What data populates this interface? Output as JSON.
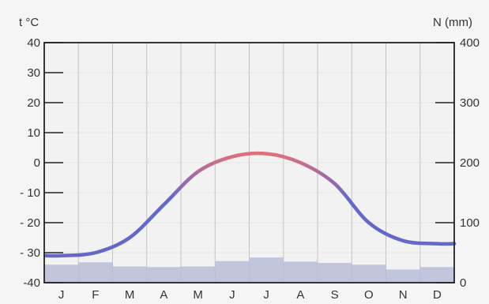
{
  "chart_data": {
    "type": "climate-diagram",
    "months": [
      "J",
      "F",
      "M",
      "A",
      "M",
      "J",
      "J",
      "A",
      "S",
      "O",
      "N",
      "D"
    ],
    "temperature": {
      "axis_label": "t °C",
      "ylim": [
        -40,
        40
      ],
      "ticks": [
        40,
        30,
        20,
        10,
        0,
        -10,
        -20,
        -30,
        -40
      ],
      "tick_labels": [
        "40",
        "30",
        "20",
        "10",
        "0",
        "- 10",
        "- 20",
        "- 30",
        "-40"
      ],
      "values": [
        -31,
        -30,
        -25,
        -14,
        -3,
        2,
        3,
        0,
        -7,
        -20,
        -26,
        -27
      ]
    },
    "precipitation": {
      "axis_label": "N (mm)",
      "ylim": [
        0,
        400
      ],
      "ticks": [
        400,
        300,
        200,
        100,
        0
      ],
      "tick_labels": [
        "400",
        "300",
        "200",
        "100",
        "0"
      ],
      "values": [
        30,
        34,
        27,
        26,
        27,
        36,
        42,
        35,
        33,
        30,
        22,
        26
      ]
    },
    "colors": {
      "temperature_line": "#6567c9",
      "temperature_line_warm": "#e0707a",
      "precip_bars": "#b9bed9",
      "grid": "#c2c4c3",
      "axis": "#222222"
    },
    "grid": true
  }
}
